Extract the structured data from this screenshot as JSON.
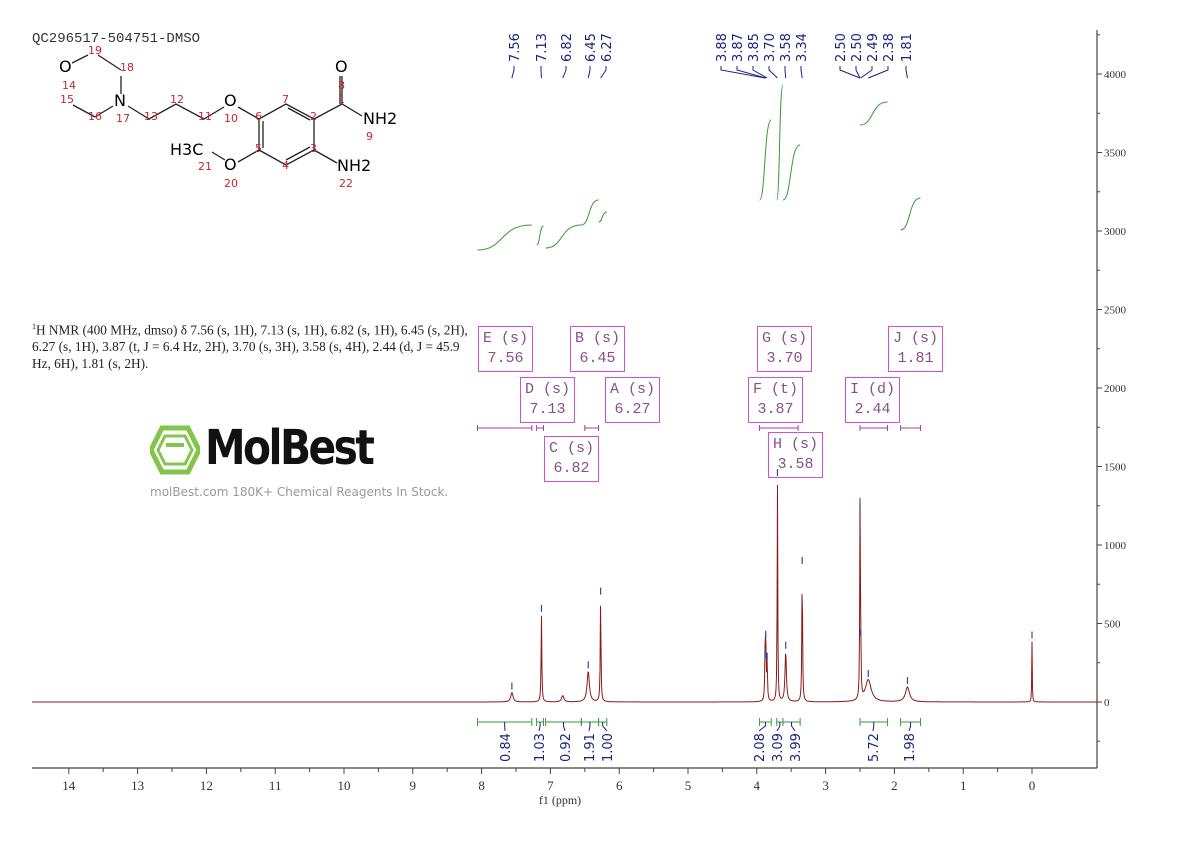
{
  "sample_title": "QC296517-504751-DMSO",
  "nmr_text_sup": "1",
  "nmr_text": "H NMR (400 MHz, dmso) δ 7.56 (s, 1H), 7.13 (s, 1H), 6.82 (s, 1H), 6.45 (s, 2H), 6.27 (s, 1H), 3.87 (t, J = 6.4 Hz, 2H), 3.70 (s, 3H), 3.58 (s, 4H), 2.44 (d, J = 45.9 Hz, 6H), 1.81 (s, 2H).",
  "structure": {
    "atoms": {
      "o_ring": "O",
      "n17": "N",
      "o10": "O",
      "o8": "O",
      "nh2_9": "NH2",
      "nh2_22": "NH2",
      "h3c": "H3C",
      "o20": "O"
    },
    "numbers": [
      "19",
      "18",
      "14",
      "15",
      "16",
      "17",
      "13",
      "12",
      "11",
      "10",
      "6",
      "7",
      "2",
      "1",
      "8",
      "9",
      "5",
      "3",
      "4",
      "21",
      "20",
      "22"
    ]
  },
  "watermark": {
    "brand": "MolBest",
    "tagline": "molBest.com 180K+ Chemical Reagents In Stock."
  },
  "colors": {
    "spectrum": "#8b1a1a",
    "integral": "#3a9a3a",
    "peak_label": "#1a237e",
    "multiplet_box": "#d050d0",
    "watermark_logo": "#7dc242"
  },
  "chart_data": {
    "type": "line",
    "title": "",
    "xlabel": "f1 (ppm)",
    "ylabel": "",
    "xlim": [
      14.55,
      -0.95
    ],
    "ylim": [
      -400,
      4200
    ],
    "x_reversed": true,
    "grid": false,
    "x_ticks": [
      "14",
      "13",
      "12",
      "11",
      "10",
      "9",
      "8",
      "7",
      "6",
      "5",
      "4",
      "3",
      "2",
      "1",
      "0"
    ],
    "y_ticks": [
      "4000",
      "3500",
      "3000",
      "2500",
      "2000",
      "1500",
      "1000",
      "500",
      "0"
    ],
    "peaks": [
      {
        "ppm": 7.56,
        "height": 60,
        "width": 0.02
      },
      {
        "ppm": 7.13,
        "height": 555,
        "width": 0.006
      },
      {
        "ppm": 6.82,
        "height": 40,
        "width": 0.02
      },
      {
        "ppm": 6.45,
        "height": 195,
        "width": 0.02
      },
      {
        "ppm": 6.27,
        "height": 665,
        "width": 0.006
      },
      {
        "ppm": 3.88,
        "height": 260,
        "width": 0.006
      },
      {
        "ppm": 3.87,
        "height": 390,
        "width": 0.006
      },
      {
        "ppm": 3.85,
        "height": 250,
        "width": 0.006
      },
      {
        "ppm": 3.7,
        "height": 1420,
        "width": 0.005
      },
      {
        "ppm": 3.58,
        "height": 320,
        "width": 0.012
      },
      {
        "ppm": 3.34,
        "height": 860,
        "width": 0.006
      },
      {
        "ppm": 2.5,
        "height": 1200,
        "width": 0.005
      },
      {
        "ppm": 2.49,
        "height": 400,
        "width": 0.005
      },
      {
        "ppm": 2.38,
        "height": 140,
        "width": 0.05
      },
      {
        "ppm": 1.81,
        "height": 95,
        "width": 0.035
      },
      {
        "ppm": 0.0,
        "height": 385,
        "width": 0.004
      }
    ],
    "peak_labels": [
      "7.56",
      "7.13",
      "6.82",
      "6.45",
      "6.27",
      "3.88",
      "3.87",
      "3.85",
      "3.70",
      "3.58",
      "3.34",
      "2.50",
      "2.50",
      "2.49",
      "2.38",
      "1.81"
    ],
    "peak_label_ppm": [
      7.56,
      7.13,
      6.82,
      6.45,
      6.27,
      3.88,
      3.87,
      3.85,
      3.7,
      3.58,
      3.34,
      2.5,
      2.5,
      2.49,
      2.38,
      1.81
    ],
    "integrals": [
      {
        "from": 8.06,
        "to": 7.27,
        "value": "0.84"
      },
      {
        "from": 7.2,
        "to": 7.1,
        "value": "1.03"
      },
      {
        "from": 7.07,
        "to": 6.55,
        "value": "0.92"
      },
      {
        "from": 6.55,
        "to": 6.3,
        "value": "1.91"
      },
      {
        "from": 6.3,
        "to": 6.18,
        "value": "1.00"
      },
      {
        "from": 3.96,
        "to": 3.79,
        "value": "2.08"
      },
      {
        "from": 3.71,
        "to": 3.62,
        "value": "3.09"
      },
      {
        "from": 3.62,
        "to": 3.37,
        "value": "3.99"
      },
      {
        "from": 2.5,
        "to": 2.1,
        "value": "5.72"
      },
      {
        "from": 1.91,
        "to": 1.62,
        "value": "1.98"
      }
    ],
    "multiplets": [
      {
        "label": "E (s)",
        "shift": "7.56"
      },
      {
        "label": "B (s)",
        "shift": "6.45"
      },
      {
        "label": "D (s)",
        "shift": "7.13"
      },
      {
        "label": "A (s)",
        "shift": "6.27"
      },
      {
        "label": "C (s)",
        "shift": "6.82"
      },
      {
        "label": "G (s)",
        "shift": "3.70"
      },
      {
        "label": "F (t)",
        "shift": "3.87"
      },
      {
        "label": "H (s)",
        "shift": "3.58"
      },
      {
        "label": "I (d)",
        "shift": "2.44"
      },
      {
        "label": "J (s)",
        "shift": "1.81"
      }
    ]
  }
}
